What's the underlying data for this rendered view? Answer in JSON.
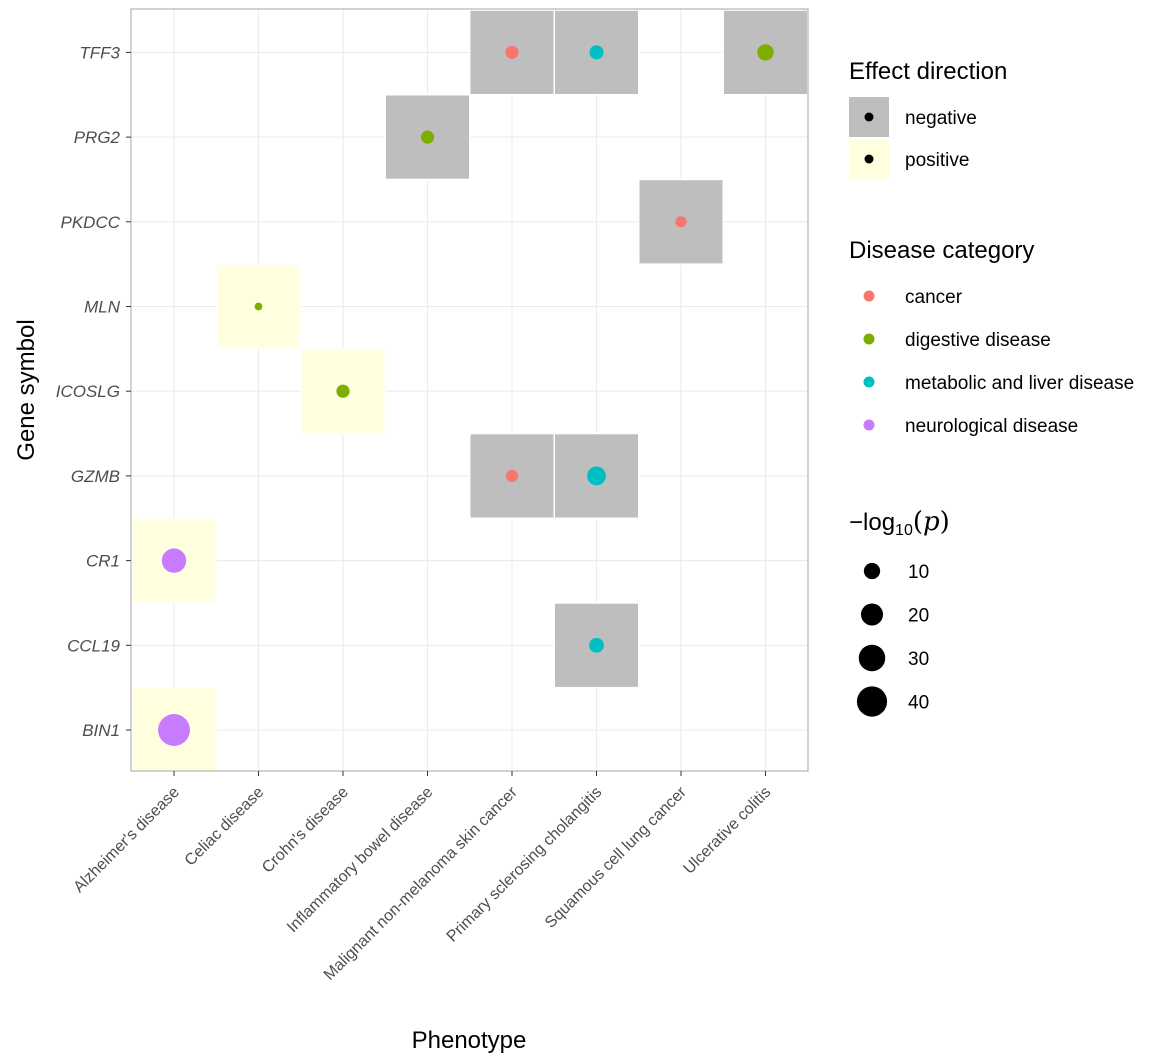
{
  "chart_data": {
    "type": "scatter",
    "xlabel": "Phenotype",
    "ylabel": "Gene symbol",
    "x_categories": [
      "Alzheimer's disease",
      "Celiac disease",
      "Crohn's disease",
      "Inflammatory bowel disease",
      "Malignant non-melanoma skin cancer",
      "Primary sclerosing cholangitis",
      "Squamous cell lung cancer",
      "Ulcerative colitis"
    ],
    "y_categories": [
      "BIN1",
      "CCL19",
      "CR1",
      "GZMB",
      "ICOSLG",
      "MLN",
      "PKDCC",
      "PRG2",
      "TFF3"
    ],
    "points": [
      {
        "gene": "TFF3",
        "phenotype": "Malignant non-melanoma skin cancer",
        "direction": "negative",
        "category": "cancer",
        "neg_log10_p": 6
      },
      {
        "gene": "TFF3",
        "phenotype": "Primary sclerosing cholangitis",
        "direction": "negative",
        "category": "metabolic and liver disease",
        "neg_log10_p": 7
      },
      {
        "gene": "TFF3",
        "phenotype": "Ulcerative colitis",
        "direction": "negative",
        "category": "digestive disease",
        "neg_log10_p": 10
      },
      {
        "gene": "PRG2",
        "phenotype": "Inflammatory bowel disease",
        "direction": "negative",
        "category": "digestive disease",
        "neg_log10_p": 6
      },
      {
        "gene": "PKDCC",
        "phenotype": "Squamous cell lung cancer",
        "direction": "negative",
        "category": "cancer",
        "neg_log10_p": 4
      },
      {
        "gene": "MLN",
        "phenotype": "Celiac disease",
        "direction": "positive",
        "category": "digestive disease",
        "neg_log10_p": 1.5
      },
      {
        "gene": "ICOSLG",
        "phenotype": "Crohn's disease",
        "direction": "positive",
        "category": "digestive disease",
        "neg_log10_p": 6
      },
      {
        "gene": "GZMB",
        "phenotype": "Malignant non-melanoma skin cancer",
        "direction": "negative",
        "category": "cancer",
        "neg_log10_p": 5
      },
      {
        "gene": "GZMB",
        "phenotype": "Primary sclerosing cholangitis",
        "direction": "negative",
        "category": "metabolic and liver disease",
        "neg_log10_p": 14
      },
      {
        "gene": "CR1",
        "phenotype": "Alzheimer's disease",
        "direction": "positive",
        "category": "neurological disease",
        "neg_log10_p": 25
      },
      {
        "gene": "CCL19",
        "phenotype": "Primary sclerosing cholangitis",
        "direction": "negative",
        "category": "metabolic and liver disease",
        "neg_log10_p": 8
      },
      {
        "gene": "BIN1",
        "phenotype": "Alzheimer's disease",
        "direction": "positive",
        "category": "neurological disease",
        "neg_log10_p": 45
      }
    ],
    "legend": {
      "effect_direction": {
        "title": "Effect direction",
        "items": [
          {
            "label": "negative",
            "fill": "#bebebe"
          },
          {
            "label": "positive",
            "fill": "#ffffe0"
          }
        ]
      },
      "disease_category": {
        "title": "Disease category",
        "items": [
          {
            "label": "cancer",
            "color": "#f8766d"
          },
          {
            "label": "digestive disease",
            "color": "#7cae00"
          },
          {
            "label": "metabolic and liver disease",
            "color": "#00bfc4"
          },
          {
            "label": "neurological disease",
            "color": "#c77cff"
          }
        ]
      },
      "size": {
        "title_prefix": "−",
        "title_log": "log",
        "title_sub": "10",
        "title_var": "p",
        "breaks": [
          "10",
          "20",
          "30",
          "40"
        ],
        "values": [
          10,
          20,
          30,
          40
        ]
      }
    },
    "colors": {
      "panel_border": "#b3b3b3",
      "grid": "#ebebeb",
      "tick_text": "#4d4d4d"
    }
  }
}
